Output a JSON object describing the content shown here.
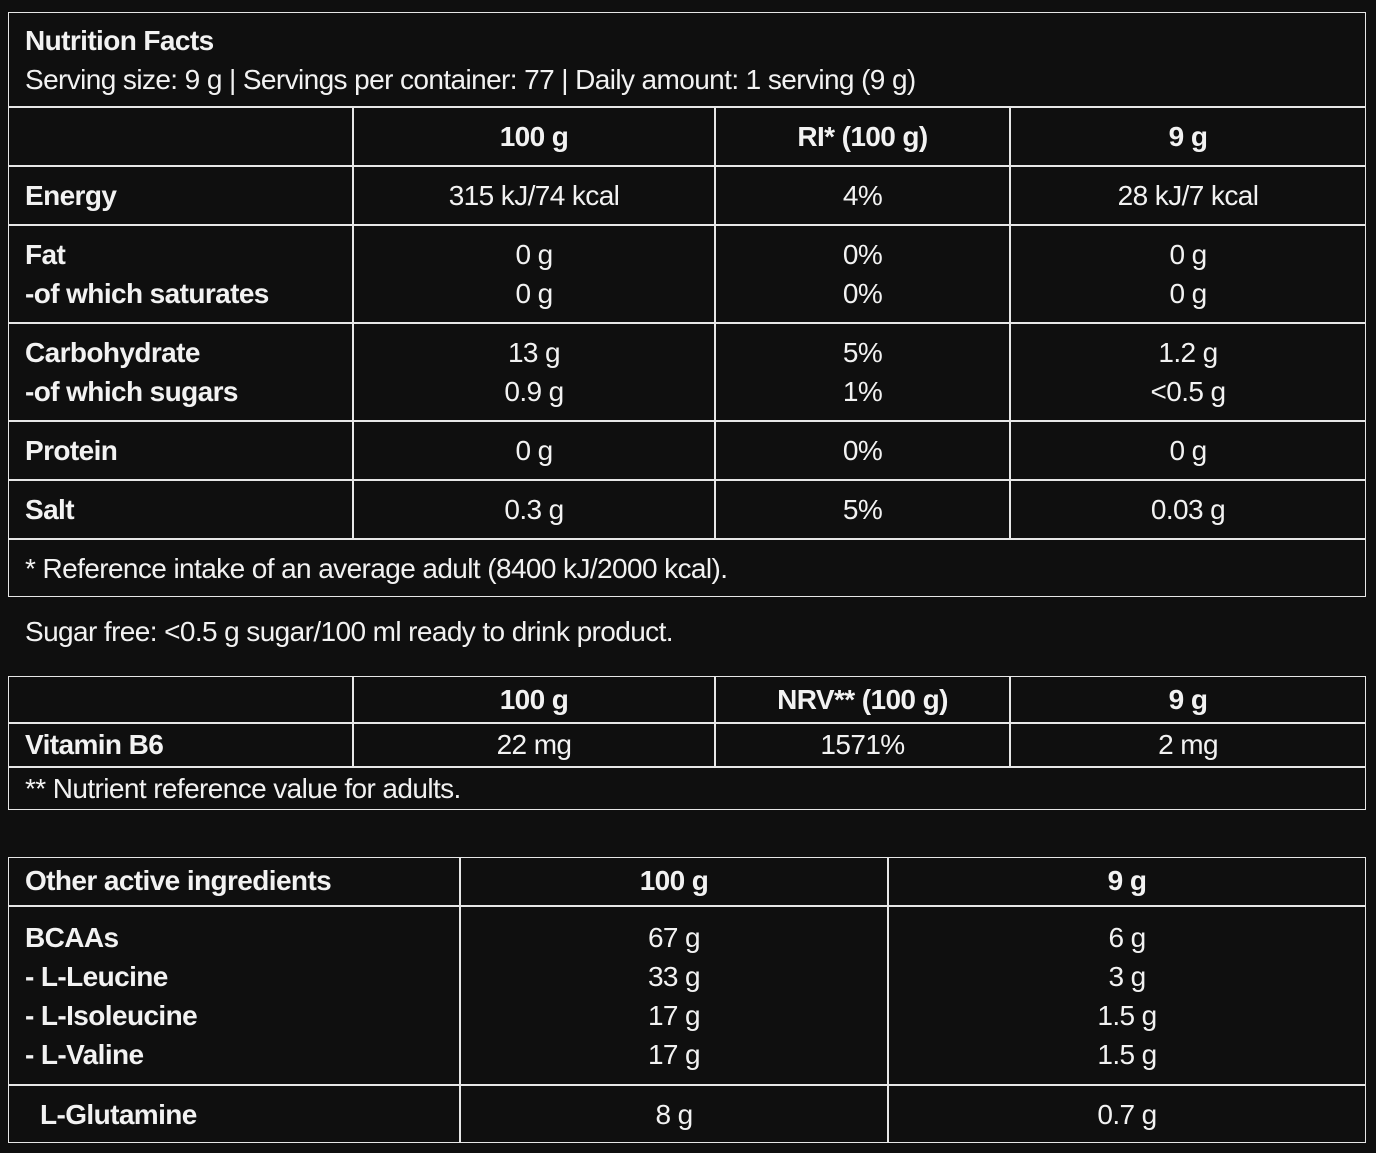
{
  "nutrition": {
    "title": "Nutrition Facts",
    "serving": "Serving size: 9 g | Servings per container: 77 | Daily amount: 1 serving (9 g)",
    "header": [
      "100 g",
      "RI* (100 g)",
      "9 g"
    ],
    "rows": [
      [
        [
          "Energy"
        ],
        [
          "315 kJ/74 kcal"
        ],
        [
          "4%"
        ],
        [
          "28 kJ/7 kcal"
        ]
      ],
      [
        [
          "Fat",
          "-of which saturates"
        ],
        [
          "0 g",
          "0 g"
        ],
        [
          "0%",
          "0%"
        ],
        [
          "0 g",
          "0 g"
        ]
      ],
      [
        [
          "Carbohydrate",
          "-of which sugars"
        ],
        [
          "13 g",
          "0.9 g"
        ],
        [
          "5%",
          "1%"
        ],
        [
          "1.2 g",
          "<0.5 g"
        ]
      ],
      [
        [
          "Protein"
        ],
        [
          "0 g"
        ],
        [
          "0%"
        ],
        [
          "0 g"
        ]
      ],
      [
        [
          "Salt"
        ],
        [
          "0.3 g"
        ],
        [
          "5%"
        ],
        [
          "0.03 g"
        ]
      ]
    ],
    "footnote": "* Reference intake of an average adult (8400 kJ/2000 kcal)."
  },
  "sugar_note": "Sugar free: <0.5 g sugar/100 ml ready to drink product.",
  "vitamins": {
    "header": [
      "100 g",
      "NRV** (100 g)",
      "9 g"
    ],
    "rows": [
      [
        [
          "Vitamin B6"
        ],
        [
          "22 mg"
        ],
        [
          "1571%"
        ],
        [
          "2 mg"
        ]
      ]
    ],
    "footnote": "** Nutrient reference value for adults."
  },
  "ingredients": {
    "header": [
      "Other active ingredients",
      "100 g",
      "9 g"
    ],
    "rows": [
      [
        [
          "BCAAs",
          "- L-Leucine",
          "- L-Isoleucine",
          "- L-Valine"
        ],
        [
          "67 g",
          "33 g",
          "17 g",
          "17 g"
        ],
        [
          "6 g",
          "3 g",
          "1.5 g",
          "1.5 g"
        ]
      ],
      [
        [
          "L-Glutamine"
        ],
        [
          "8 g"
        ],
        [
          "0.7 g"
        ]
      ]
    ]
  }
}
